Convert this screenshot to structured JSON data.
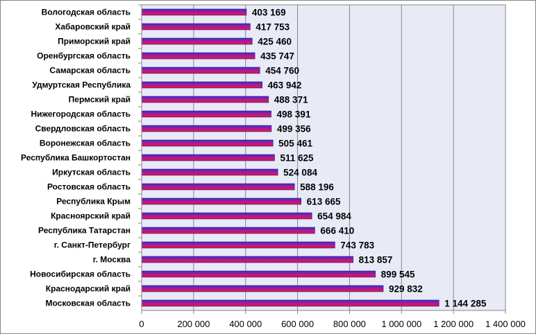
{
  "chart_data": {
    "type": "bar",
    "orientation": "horizontal",
    "title": "",
    "xlabel": "",
    "ylabel": "",
    "categories": [
      "Вологодская область",
      "Хабаровский край",
      "Приморский край",
      "Оренбургская область",
      "Самарская область",
      "Удмуртская Республика",
      "Пермский край",
      "Нижегородская область",
      "Свердловская область",
      "Воронежская область",
      "Республика Башкортостан",
      "Иркутская область",
      "Ростовская область",
      "Республика Крым",
      "Красноярский край",
      "Республика Татарстан",
      "г. Санкт-Петербург",
      "г. Москва",
      "Новосибирская область",
      "Краснодарский край",
      "Московская область"
    ],
    "values": [
      403169,
      417753,
      425460,
      435747,
      454760,
      463942,
      488371,
      498391,
      499356,
      505461,
      511625,
      524084,
      588196,
      613665,
      654984,
      666410,
      743783,
      813857,
      899545,
      929832,
      1144285
    ],
    "value_labels": [
      "403 169",
      "417 753",
      "425 460",
      "435 747",
      "454 760",
      "463 942",
      "488 371",
      "498 391",
      "499 356",
      "505 461",
      "511 625",
      "524 084",
      "588 196",
      "613 665",
      "654 984",
      "666 410",
      "743 783",
      "813 857",
      "899 545",
      "929 832",
      "1 144 285"
    ],
    "xlim": [
      0,
      1400000
    ],
    "x_ticks": [
      0,
      200000,
      400000,
      600000,
      800000,
      1000000,
      1200000,
      1400000
    ],
    "x_tick_labels": [
      "0",
      "200 000",
      "400 000",
      "600 000",
      "800 000",
      "1 000 000",
      "1 200 000",
      "1 400 000"
    ],
    "grid": true,
    "legend": "none",
    "colors": {
      "bar_top": "#3a2bd0",
      "bar_bottom": "#e0164e",
      "bar_mid": "#b01a8e",
      "plot_background": "#e8eaf6",
      "gridline": "#868686",
      "border": "#868686"
    }
  }
}
